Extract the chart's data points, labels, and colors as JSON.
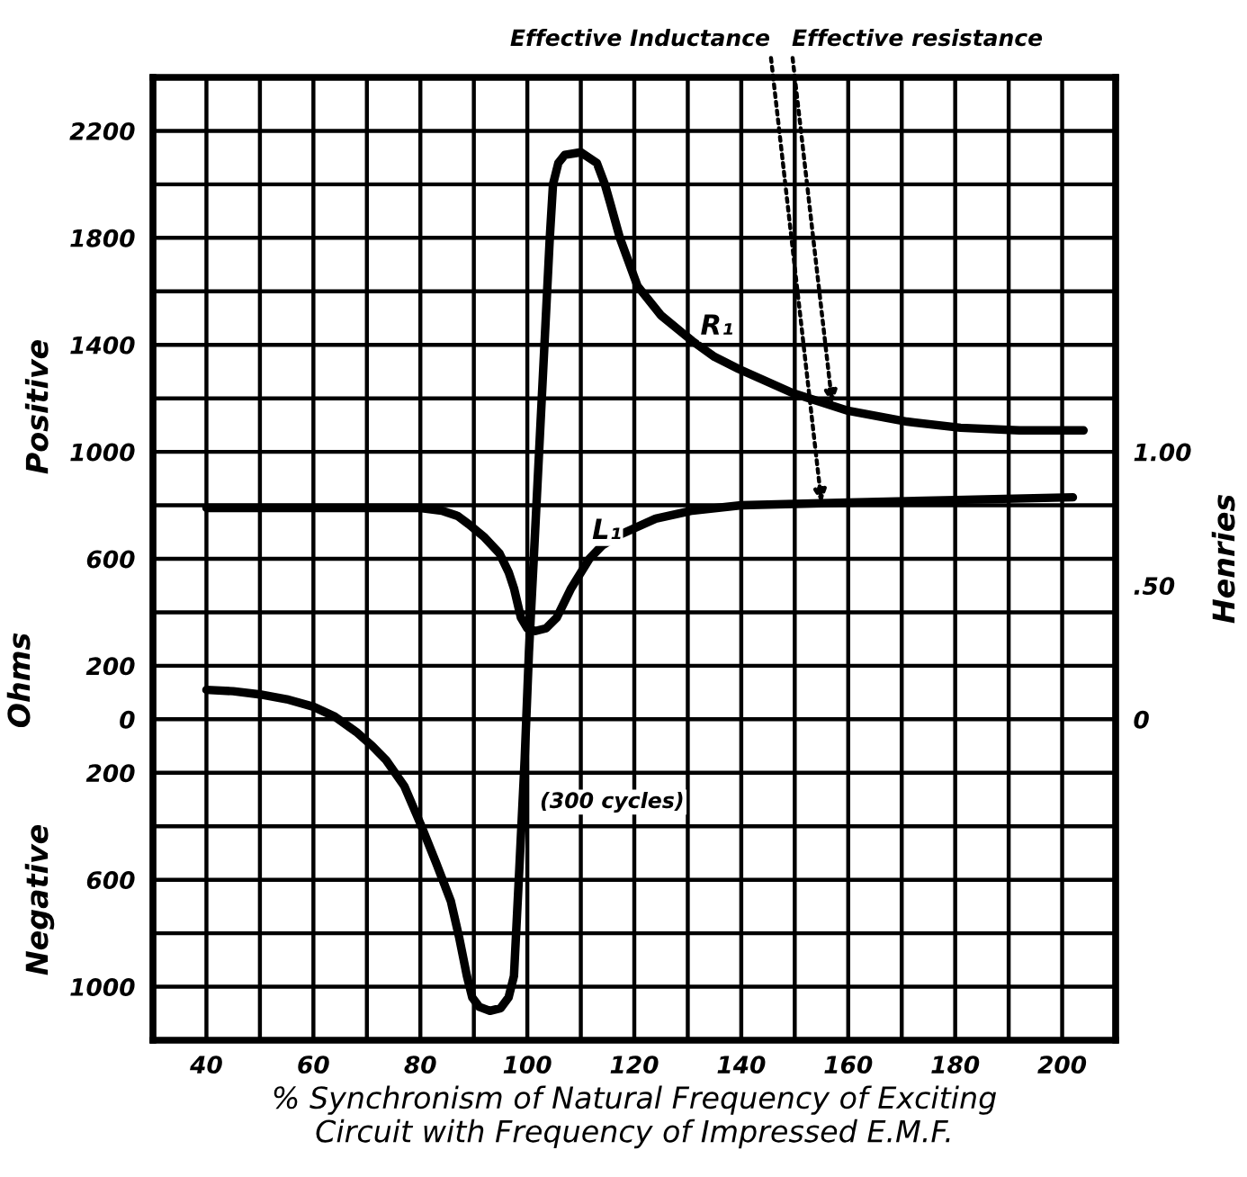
{
  "chart_data": {
    "type": "line",
    "xlabel": "% Synchronism of Natural Frequency of Exciting\nCircuit with Frequency of Impressed E.M.F.",
    "ylabel": "Ohms",
    "y2label": "Henries",
    "xlim": [
      30,
      210
    ],
    "xticks": [
      40,
      {
        "value": 50,
        "label": null
      },
      60,
      {
        "value": 70,
        "label": null
      },
      80,
      {
        "value": 90,
        "label": null
      },
      100,
      {
        "value": 110,
        "label": null
      },
      120,
      {
        "value": 130,
        "label": null
      },
      140,
      {
        "value": 150,
        "label": null
      },
      160,
      {
        "value": 170,
        "label": null
      },
      180,
      {
        "value": 190,
        "label": null
      },
      200
    ],
    "ylim": [
      -1200,
      2400
    ],
    "yticks": [
      {
        "value": -1000,
        "label": "1000"
      },
      {
        "value": -800,
        "label": null
      },
      {
        "value": -600,
        "label": "600"
      },
      {
        "value": -400,
        "label": null
      },
      {
        "value": -200,
        "label": "200"
      },
      0,
      200,
      {
        "value": 400,
        "label": null
      },
      600,
      {
        "value": 800,
        "label": null
      },
      1000,
      {
        "value": 1200,
        "label": null
      },
      1400,
      {
        "value": 1600,
        "label": null
      },
      1800,
      {
        "value": 2000,
        "label": null
      },
      2200
    ],
    "y2lim": [
      -1.2,
      2.4
    ],
    "y2ticks": [
      0,
      {
        "value": 0.5,
        "label": ".50"
      },
      {
        "value": 1,
        "label": "1.00"
      }
    ],
    "grid": true,
    "series": [
      {
        "name": "R₁",
        "color": "#000000",
        "x": [
          40,
          45,
          50,
          55,
          60,
          64,
          68,
          71,
          73.6,
          77,
          80,
          83,
          85.7,
          87.3,
          88.7,
          89.7,
          91,
          93,
          95,
          96.5,
          97.5,
          98.5,
          99.5,
          100.3,
          101.2,
          102.2,
          103.2,
          104.2,
          104.8,
          105.8,
          107,
          110,
          113,
          114.5,
          115.5,
          117.3,
          120.6,
          125,
          130.8,
          135,
          139.5,
          149.6,
          159.7,
          171,
          181,
          192,
          204
        ],
        "values": [
          110,
          105,
          93,
          75,
          47,
          10,
          -47,
          -100,
          -153,
          -250,
          -390,
          -540,
          -680,
          -820,
          -960,
          -1040,
          -1075,
          -1090,
          -1080,
          -1040,
          -960,
          -560,
          -150,
          250,
          600,
          1000,
          1400,
          1800,
          2000,
          2080,
          2110,
          2120,
          2080,
          2000,
          1930,
          1800,
          1620,
          1510,
          1415,
          1355,
          1310,
          1220,
          1155,
          1113,
          1090,
          1080,
          1080
        ]
      },
      {
        "name": "L₁",
        "color": "#000000",
        "axis": "y2",
        "x": [
          40,
          50,
          60,
          70,
          80,
          84,
          87,
          89,
          92,
          94.8,
          96.5,
          97.5,
          98.8,
          100,
          101.5,
          103.5,
          105.5,
          108.2,
          111.6,
          114,
          117.3,
          124,
          130.8,
          140,
          150,
          160,
          180,
          202
        ],
        "values": [
          0.79,
          0.79,
          0.79,
          0.79,
          0.79,
          0.78,
          0.76,
          0.73,
          0.68,
          0.62,
          0.55,
          0.49,
          0.38,
          0.34,
          0.33,
          0.34,
          0.38,
          0.49,
          0.6,
          0.65,
          0.69,
          0.75,
          0.78,
          0.8,
          0.805,
          0.81,
          0.82,
          0.83
        ]
      }
    ],
    "annotations": [
      {
        "text": "Effective Inductance",
        "x": 155,
        "y": 810
      },
      {
        "text": "Effective resistance",
        "x": 157,
        "y": 1180
      },
      {
        "text": "(300 cycles)",
        "x": 100,
        "y": -310
      },
      "Positive",
      "Negative"
    ]
  }
}
